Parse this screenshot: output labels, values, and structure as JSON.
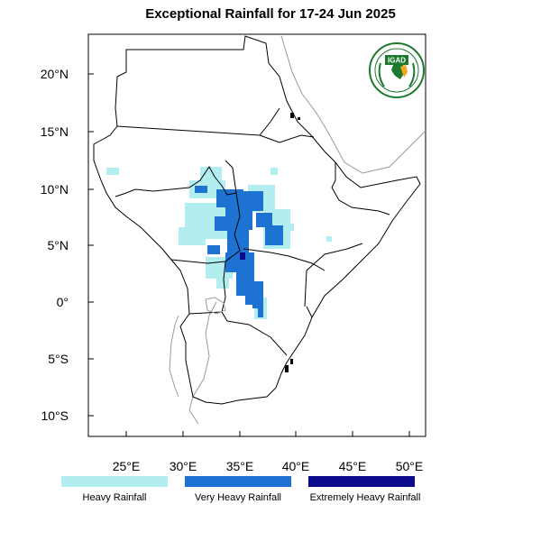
{
  "title": "Exceptional Rainfall for 17-24 Jun 2025",
  "logo": {
    "text": "IGAD",
    "colors": [
      "#1c7a2e",
      "#f2a81d",
      "#ffffff"
    ]
  },
  "axes": {
    "lon_labels": [
      "25°E",
      "30°E",
      "35°E",
      "40°E",
      "45°E",
      "50°E"
    ],
    "lat_labels": [
      "20°N",
      "15°N",
      "10°N",
      "5°N",
      "0°",
      "5°S",
      "10°S"
    ]
  },
  "legend": [
    {
      "label": "Heavy Rainfall",
      "color": "#b2eef0"
    },
    {
      "label": "Very Heavy Rainfall",
      "color": "#1e73d2"
    },
    {
      "label": "Extremely Heavy Rainfall",
      "color": "#0a0a8a"
    }
  ]
}
